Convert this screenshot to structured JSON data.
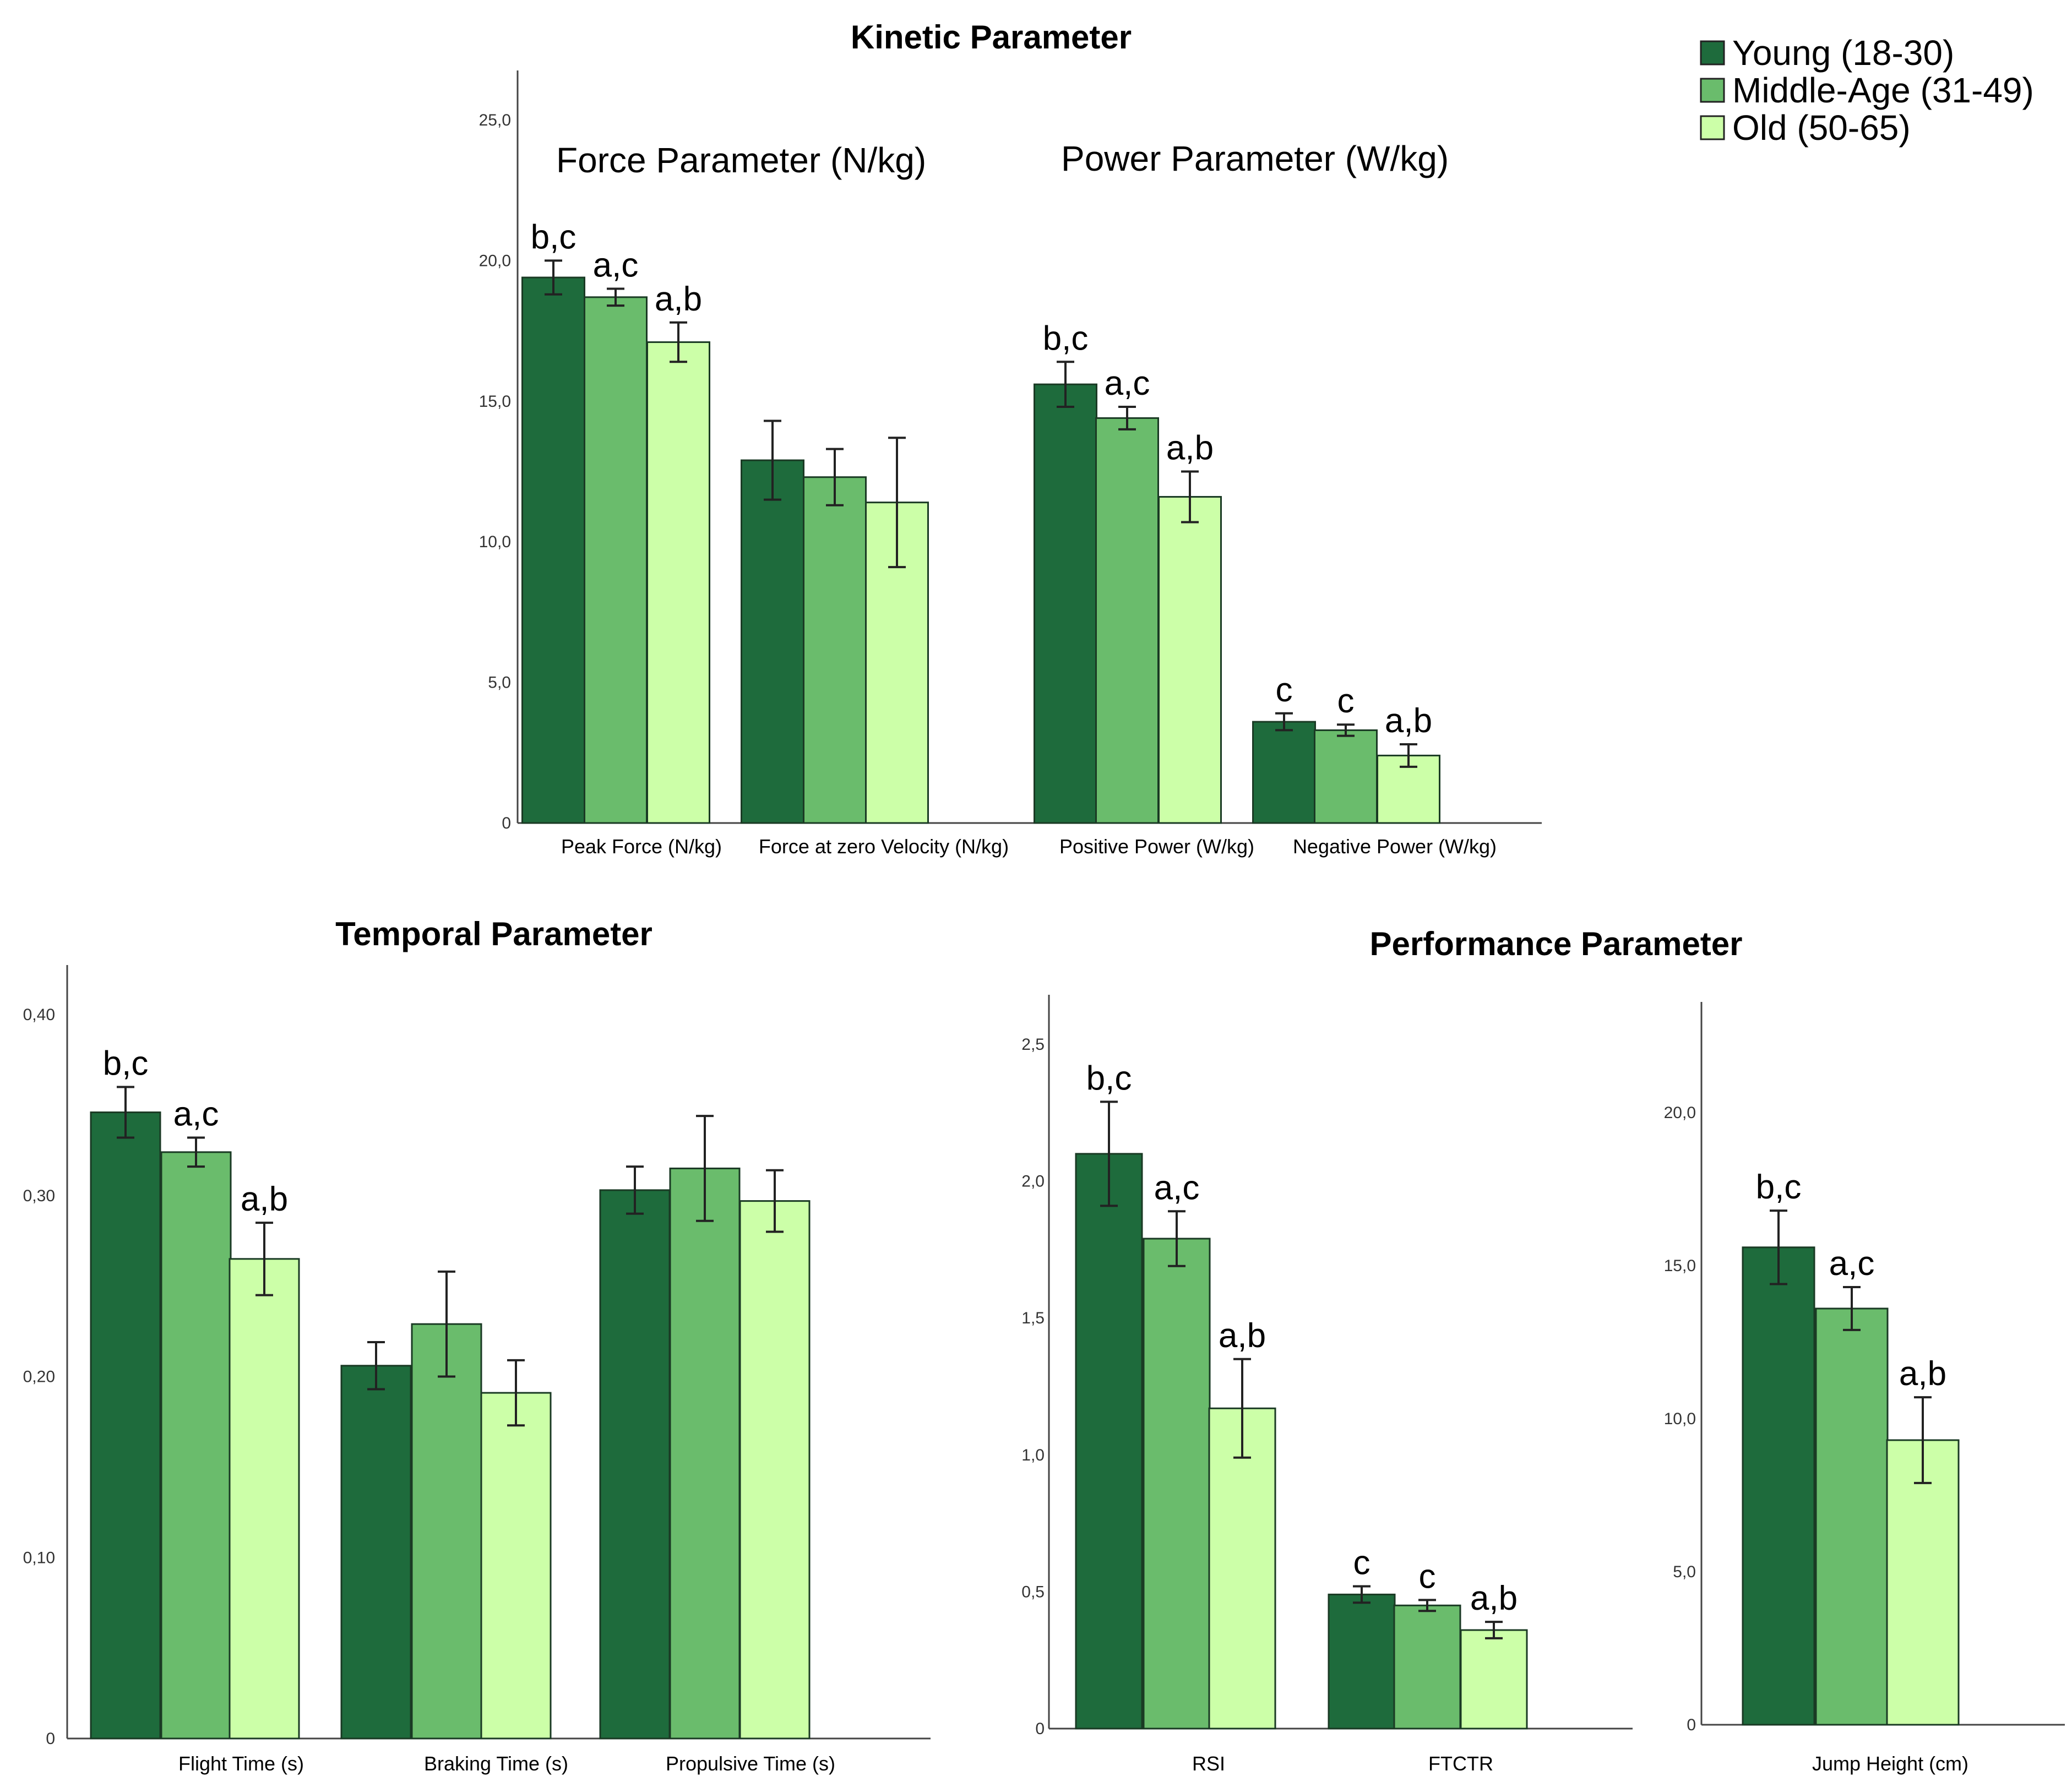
{
  "legend": {
    "items": [
      {
        "label": "Young (18-30)",
        "color": "#1e6b3c"
      },
      {
        "label": "Middle-Age (31-49)",
        "color": "#6abc6c"
      },
      {
        "label": "Old (50-65)",
        "color": "#ccffa8"
      }
    ]
  },
  "chart_data": [
    {
      "id": "kinetic",
      "type": "bar",
      "title": "Kinetic Parameter",
      "ylim": [
        0,
        25
      ],
      "yticks": [
        "0",
        "5,0",
        "10,0",
        "15,0",
        "20,0",
        "25,0"
      ],
      "section_labels": [
        "Force Parameter (N/kg)",
        "Power Parameter (W/kg)"
      ],
      "categories": [
        "Peak Force (N/kg)",
        "Force at zero Velocity (N/kg)",
        "Positive Power (W/kg)",
        "Negative Power (W/kg)"
      ],
      "series": [
        {
          "name": "Young (18-30)",
          "values": [
            19.4,
            12.9,
            15.6,
            3.6
          ],
          "errors": [
            0.6,
            1.4,
            0.8,
            0.3
          ]
        },
        {
          "name": "Middle-Age (31-49)",
          "values": [
            18.7,
            12.3,
            14.4,
            3.3
          ],
          "errors": [
            0.3,
            1.0,
            0.4,
            0.2
          ]
        },
        {
          "name": "Old (50-65)",
          "values": [
            17.1,
            11.4,
            11.6,
            2.4
          ],
          "errors": [
            0.7,
            2.3,
            0.9,
            0.4
          ]
        }
      ],
      "sig_labels": [
        [
          "b,c",
          "a,c",
          "a,b"
        ],
        [
          "",
          "",
          ""
        ],
        [
          "b,c",
          "a,c",
          "a,b"
        ],
        [
          "c",
          "c",
          "a,b"
        ]
      ]
    },
    {
      "id": "temporal",
      "type": "bar",
      "title": "Temporal Parameter",
      "ylim": [
        0,
        0.4
      ],
      "yticks": [
        "0",
        "0,10",
        "0,20",
        "0,30",
        "0,40"
      ],
      "categories": [
        "Flight Time (s)",
        "Braking Time (s)",
        "Propulsive Time (s)"
      ],
      "series": [
        {
          "name": "Young (18-30)",
          "values": [
            0.346,
            0.206,
            0.303
          ],
          "errors": [
            0.014,
            0.013,
            0.013
          ]
        },
        {
          "name": "Middle-Age (31-49)",
          "values": [
            0.324,
            0.229,
            0.315
          ],
          "errors": [
            0.008,
            0.029,
            0.029
          ]
        },
        {
          "name": "Old (50-65)",
          "values": [
            0.265,
            0.191,
            0.297
          ],
          "errors": [
            0.02,
            0.018,
            0.017
          ]
        }
      ],
      "sig_labels": [
        [
          "b,c",
          "a,c",
          "a,b"
        ],
        [
          "",
          "",
          ""
        ],
        [
          "",
          "",
          ""
        ]
      ]
    },
    {
      "id": "performance",
      "type": "bar",
      "title": "Performance Parameter",
      "ylim": [
        0,
        2.5
      ],
      "yticks": [
        "0",
        "0,5",
        "1,0",
        "1,5",
        "2,0",
        "2,5"
      ],
      "categories": [
        "RSI",
        "FTCTR"
      ],
      "series": [
        {
          "name": "Young (18-30)",
          "values": [
            2.1,
            0.49
          ],
          "errors": [
            0.19,
            0.03
          ]
        },
        {
          "name": "Middle-Age (31-49)",
          "values": [
            1.79,
            0.45
          ],
          "errors": [
            0.1,
            0.02
          ]
        },
        {
          "name": "Old (50-65)",
          "values": [
            1.17,
            0.36
          ],
          "errors": [
            0.18,
            0.03
          ]
        }
      ],
      "sig_labels": [
        [
          "b,c",
          "a,c",
          "a,b"
        ],
        [
          "c",
          "c",
          "a,b"
        ]
      ]
    },
    {
      "id": "jump",
      "type": "bar",
      "title": "",
      "ylim": [
        0,
        22
      ],
      "yticks": [
        "0",
        "5,0",
        "10,0",
        "15,0",
        "20,0"
      ],
      "categories": [
        "Jump Height (cm)"
      ],
      "series": [
        {
          "name": "Young (18-30)",
          "values": [
            15.6
          ],
          "errors": [
            1.2
          ]
        },
        {
          "name": "Middle-Age (31-49)",
          "values": [
            13.6
          ],
          "errors": [
            0.7
          ]
        },
        {
          "name": "Old (50-65)",
          "values": [
            9.3
          ],
          "errors": [
            1.4
          ]
        }
      ],
      "sig_labels": [
        [
          "b,c",
          "a,c",
          "a,b"
        ]
      ]
    }
  ]
}
